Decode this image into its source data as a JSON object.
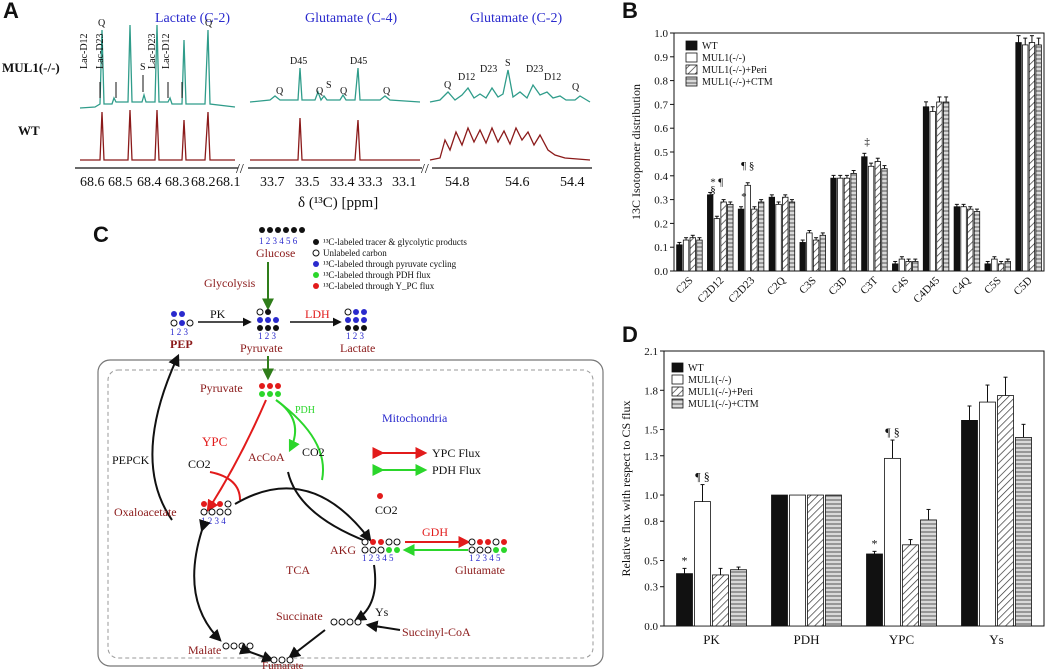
{
  "panels": {
    "a": "A",
    "b": "B",
    "c": "C",
    "d": "D"
  },
  "panel_a": {
    "headers": [
      "Lactate (C-2)",
      "Glutamate (C-4)",
      "Glutamate (C-2)"
    ],
    "row_labels": {
      "mul1": "MUL1(-/-)",
      "wt": "WT"
    },
    "ticks_1": [
      "68.6",
      "68.5",
      "68.4",
      "68.3",
      "68.2",
      "68.1"
    ],
    "ticks_2": [
      "33.7",
      "33.5",
      "33.4",
      "33.3",
      "33.1"
    ],
    "ticks_3": [
      "54.8",
      "54.6",
      "54.4"
    ],
    "xlabel": "δ (¹³C) [ppm]",
    "annotations_lactate": [
      "Q",
      "Lac-D12",
      "Lac-D23",
      "S",
      "Lac-D23",
      "Lac-D12",
      "Q"
    ],
    "annotations_glu4": [
      "D45",
      "Q",
      "S",
      "Q",
      "Q",
      "D45",
      "Q",
      "Q"
    ],
    "annotations_glu2": [
      "Q",
      "D12",
      "Q",
      "D23",
      "S",
      "Q",
      "D23",
      "Q",
      "D12",
      "Q"
    ],
    "colors": {
      "mul1": "#2f9c8a",
      "wt": "#8b1a1a",
      "header": "#2a2acd"
    }
  },
  "chart_data": [
    {
      "type": "bar",
      "title": "",
      "ylabel": "13C Isotopomer distribution",
      "xlabel": "",
      "ylim": [
        0,
        1.0
      ],
      "yticks": [
        "0.0",
        "0.1",
        "0.2",
        "0.3",
        "0.4",
        "0.5",
        "0.6",
        "0.7",
        "0.8",
        "0.9",
        "1.0"
      ],
      "categories": [
        "C2S",
        "C2D12",
        "C2D23",
        "C2Q",
        "C3S",
        "C3D",
        "C3T",
        "C4S",
        "C4D45",
        "C4Q",
        "C5S",
        "C5D"
      ],
      "series": [
        {
          "name": "WT",
          "values": [
            0.11,
            0.32,
            0.26,
            0.31,
            0.12,
            0.39,
            0.48,
            0.03,
            0.69,
            0.27,
            0.03,
            0.96
          ]
        },
        {
          "name": "MUL1(-/-)",
          "values": [
            0.13,
            0.22,
            0.36,
            0.28,
            0.16,
            0.39,
            0.44,
            0.05,
            0.67,
            0.27,
            0.05,
            0.95
          ]
        },
        {
          "name": "MUL1(-/-)+Peri",
          "values": [
            0.14,
            0.29,
            0.26,
            0.31,
            0.13,
            0.39,
            0.46,
            0.04,
            0.71,
            0.26,
            0.03,
            0.96
          ]
        },
        {
          "name": "MUL1(-/-)+CTM",
          "values": [
            0.13,
            0.28,
            0.29,
            0.29,
            0.15,
            0.41,
            0.43,
            0.04,
            0.71,
            0.25,
            0.04,
            0.95
          ]
        }
      ],
      "annotations": [
        "*",
        "¶",
        "§",
        "*",
        "¶ §",
        "‡"
      ]
    },
    {
      "type": "bar",
      "title": "",
      "ylabel": "Relative flux with respect to CS flux",
      "xlabel": "",
      "ylim": [
        0.0,
        2.1
      ],
      "yticks": [
        "0.0",
        "0.3",
        "0.5",
        "0.8",
        "1.0",
        "1.3",
        "1.5",
        "1.8",
        "2.1"
      ],
      "categories": [
        "PK",
        "PDH",
        "YPC",
        "Ys"
      ],
      "series": [
        {
          "name": "WT",
          "values": [
            0.4,
            1.0,
            0.55,
            1.57
          ]
        },
        {
          "name": "MUL1(-/-)",
          "values": [
            0.95,
            1.0,
            1.28,
            1.71
          ]
        },
        {
          "name": "MUL1(-/-)+Peri",
          "values": [
            0.39,
            1.0,
            0.62,
            1.76
          ]
        },
        {
          "name": "MUL1(-/-)+CTM",
          "values": [
            0.43,
            1.0,
            0.81,
            1.44
          ]
        }
      ],
      "errors": [
        [
          0.04,
          0.0,
          0.02,
          0.11
        ],
        [
          0.13,
          0.0,
          0.14,
          0.13
        ],
        [
          0.05,
          0.0,
          0.04,
          0.14
        ],
        [
          0.02,
          0.0,
          0.08,
          0.1
        ]
      ],
      "annotations": [
        "*",
        "¶ §",
        "*",
        "¶ §"
      ]
    }
  ],
  "panel_c": {
    "legend": [
      "¹³C-labeled tracer & glycolytic products",
      "Unlabeled carbon",
      "¹³C-labeled through pyruvate cycling",
      "¹³C-labeled through PDH flux",
      "¹³C-labeled through Y_PC flux"
    ],
    "nodes": {
      "glucose": "Glucose",
      "glycolysis": "Glycolysis",
      "pk": "PK",
      "ldh": "LDH",
      "pep": "PEP",
      "pyruvate_top": "Pyruvate",
      "lactate": "Lactate",
      "pyruvate_mito": "Pyruvate",
      "pdh": "PDH",
      "mitochondria": "Mitochondria",
      "ypc": "YPC",
      "co2_1": "CO2",
      "acoa": "AcCoA",
      "co2_2": "CO2",
      "pepck": "PEPCK",
      "ypc_flux": "YPC Flux",
      "pdh_flux": "PDH Flux",
      "oxaloacetate": "Oxaloacetate",
      "co2_3": "CO2",
      "gdh": "GDH",
      "tca": "TCA",
      "akg": "AKG",
      "glutamate": "Glutamate",
      "succinate": "Succinate",
      "ys": "Ys",
      "succinyl": "Succinyl-CoA",
      "malate": "Malate",
      "fumarate": "Fumarate"
    },
    "numbers": {
      "glucose": "1 2 3 4 5 6",
      "three": "1 2 3",
      "four": "1 2 3 4",
      "five": "1 2 3 4 5"
    }
  }
}
